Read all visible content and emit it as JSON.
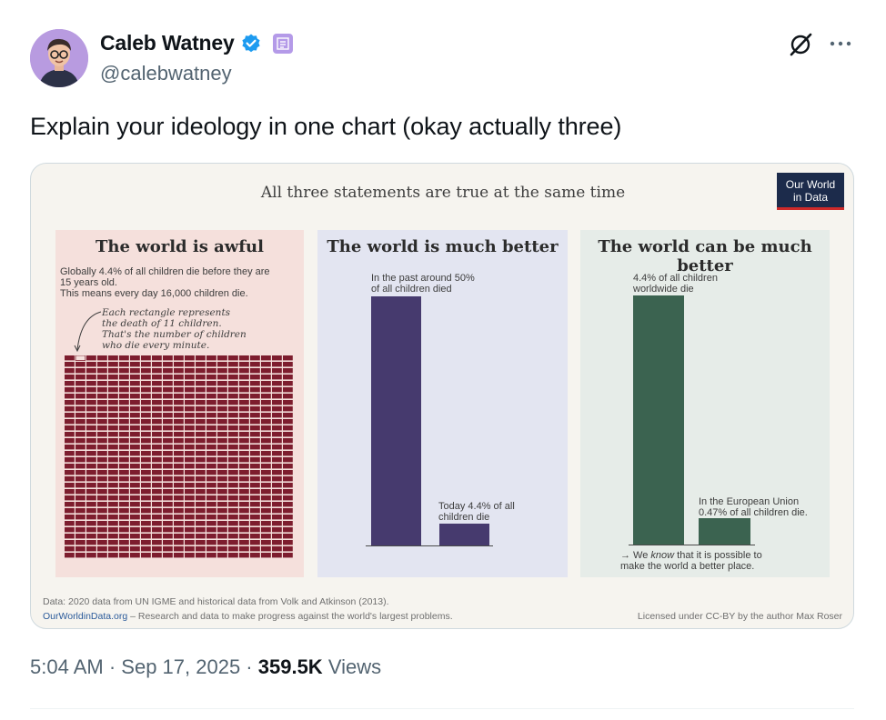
{
  "author": {
    "name": "Caleb Watney",
    "handle": "@calebwatney"
  },
  "tweet": {
    "text": "Explain your ideology in one chart (okay actually three)"
  },
  "icons": {
    "verified": "verified-badge-icon",
    "affiliation": "affiliation-badge-icon",
    "grok": "grok-icon",
    "more": "more-icon"
  },
  "colors": {
    "verified": "#1d9bf0",
    "panel_awful_bars": "#7d1d2e",
    "panel_better_bars": "#463a6e",
    "panel_can_be_better_bars": "#3b6350"
  },
  "infographic": {
    "headline": "All three statements are true at the same time",
    "logo": {
      "line1": "Our World",
      "line2": "in Data"
    },
    "panels": [
      {
        "title": "The world is awful",
        "description": "Globally 4.4% of all children die before they are\n15 years old.\nThis means every day 16,000 children die.",
        "note": "Each rectangle represents\nthe death of 11 children.\nThat's the number of children\nwho die every minute."
      },
      {
        "title": "The world is much better",
        "bars": [
          {
            "label": "In the past around 50%\nof all children died",
            "value": 50
          },
          {
            "label": "Today 4.4% of all\nchildren die",
            "value": 4.4
          }
        ]
      },
      {
        "title": "The world can be much better",
        "bars": [
          {
            "label": "4.4% of all children\nworldwide die",
            "value": 4.4
          },
          {
            "label": "In the European Union\n0.47% of all children die.",
            "value": 0.47
          }
        ],
        "footer_pre": "→ We ",
        "footer_em": "know",
        "footer_post": " that it is possible to\nmake the world a better place."
      }
    ],
    "source_line": "Data: 2020 data from UN IGME and historical data from Volk and Atkinson (2013).",
    "site_link": "OurWorldinData.org",
    "site_tagline": " – Research and data to make progress against the world's largest problems.",
    "license": "Licensed under CC-BY by the author Max Roser"
  },
  "meta": {
    "time": "5:04 AM",
    "sep1": " · ",
    "date": "Sep 17, 2025",
    "sep2": " · ",
    "views": "359.5K",
    "views_label": " Views"
  }
}
